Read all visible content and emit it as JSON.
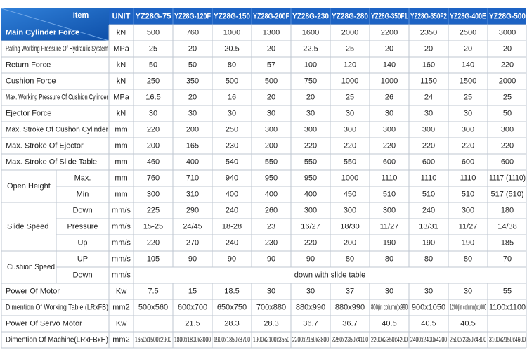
{
  "header": {
    "item": "Item",
    "unit": "UNIT",
    "models": [
      "YZ28G-75",
      "YZ28G-120F",
      "YZ28G-150",
      "YZ28G-200F",
      "YZ28G-230",
      "YZ28G-280",
      "YZ28G-350F1",
      "YZ28G-350F2",
      "YZ28G-400E",
      "YZ28G-500"
    ]
  },
  "rows": [
    {
      "label": "Main Cylinder Force",
      "unit": "kN",
      "values": [
        500,
        760,
        1000,
        1300,
        1600,
        2000,
        2200,
        2350,
        2500,
        3000
      ]
    },
    {
      "label": "Rating Working Pressure Of Hydraulic System",
      "unit": "MPa",
      "values": [
        25,
        20,
        20.5,
        20,
        22.5,
        25,
        20,
        20,
        20,
        20
      ]
    },
    {
      "label": "Return Force",
      "unit": "kN",
      "values": [
        50,
        50,
        80,
        57,
        100,
        120,
        140,
        160,
        140,
        220
      ]
    },
    {
      "label": "Cushion Force",
      "unit": "kN",
      "values": [
        250,
        350,
        500,
        500,
        750,
        1000,
        1000,
        1150,
        1500,
        2000
      ]
    },
    {
      "label": "Max. Working Pressure Of Cushion Cylinder",
      "unit": "MPa",
      "values": [
        16.5,
        20,
        16,
        20,
        20,
        25,
        26,
        24,
        25,
        25
      ]
    },
    {
      "label": "Ejector Force",
      "unit": "kN",
      "values": [
        30,
        30,
        30,
        30,
        30,
        30,
        30,
        30,
        30,
        50
      ]
    },
    {
      "label": "Max. Stroke Of Cushon Cylinder",
      "unit": "mm",
      "values": [
        220,
        200,
        250,
        300,
        300,
        300,
        300,
        300,
        300,
        300
      ]
    },
    {
      "label": "Max. Stroke Of Ejector",
      "unit": "mm",
      "values": [
        200,
        165,
        230,
        200,
        220,
        220,
        220,
        220,
        220,
        220
      ]
    },
    {
      "label": "Max. Stroke Of Slide Table",
      "unit": "mm",
      "values": [
        460,
        400,
        540,
        550,
        550,
        550,
        600,
        600,
        600,
        600
      ]
    },
    {
      "label": "Open Height",
      "subrows": [
        {
          "label": "Max.",
          "unit": "mm",
          "values": [
            760,
            710,
            940,
            950,
            950,
            1000,
            1110,
            1110,
            1110,
            "1117 (1110)"
          ]
        },
        {
          "label": "Min",
          "unit": "mm",
          "values": [
            300,
            310,
            400,
            400,
            400,
            450,
            510,
            510,
            510,
            "517 (510)"
          ]
        }
      ]
    },
    {
      "label": "Slide Speed",
      "subrows": [
        {
          "label": "Down",
          "unit": "mm/s",
          "values": [
            225,
            290,
            240,
            260,
            300,
            300,
            300,
            240,
            300,
            180
          ]
        },
        {
          "label": "Pressure",
          "unit": "mm/s",
          "values": [
            "15-25",
            "24/45",
            "18-28",
            23,
            "16/27",
            "18/30",
            "11/27",
            "13/31",
            "11/27",
            "14/38"
          ]
        },
        {
          "label": "Up",
          "unit": "mm/s",
          "values": [
            220,
            270,
            240,
            230,
            220,
            200,
            190,
            190,
            190,
            185
          ]
        }
      ]
    },
    {
      "label": "Cushion Speed",
      "subrows": [
        {
          "label": "UP",
          "unit": "mm/s",
          "values": [
            105,
            90,
            90,
            90,
            90,
            80,
            80,
            80,
            80,
            70
          ]
        },
        {
          "label": "Down",
          "unit": "mm/s",
          "merged": "down with slide table"
        }
      ]
    },
    {
      "label": "Power Of Motor",
      "unit": "Kw",
      "values": [
        7.5,
        15,
        18.5,
        30,
        30,
        37,
        30,
        30,
        30,
        55
      ]
    },
    {
      "label": "Dimention Of Working Table (LRxFB)",
      "unit": "mm2",
      "values": [
        "500x560",
        "600x700",
        "650x750",
        "700x880",
        "880x990",
        "880x990",
        "800(in column)x990",
        "900x1050",
        "1200(in column)x1000",
        "1100x1100"
      ]
    },
    {
      "label": "Power Of Servo Motor",
      "unit": "Kw",
      "values": [
        null,
        21.5,
        28.3,
        28.3,
        36.7,
        36.7,
        40.5,
        40.5,
        40.5,
        null
      ]
    },
    {
      "label": "Dimention Of Machine(LRxFBxH)",
      "unit": "mm2",
      "values": [
        "1650x1500x2900",
        "1800x1800x3000",
        "1900x1850x3700",
        "1900x2100x3550",
        "2200x2150x3800",
        "2250x2350x4100",
        "2200x2350x4200",
        "2400x2400x4200",
        "2500x2350x4300",
        "3100x2150x4600"
      ]
    }
  ]
}
